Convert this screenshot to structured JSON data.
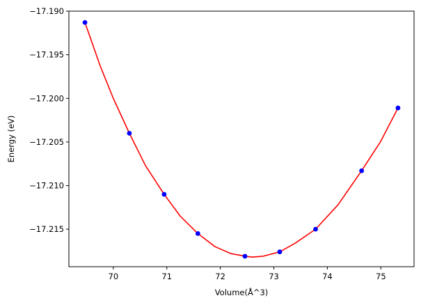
{
  "chart_data": {
    "type": "scatter",
    "xlabel": "Volume(Å^3)",
    "ylabel": "Energy (eV)",
    "xlim": [
      69.17,
      75.62
    ],
    "ylim": [
      -17.2193,
      -17.19
    ],
    "x_ticks": [
      70,
      71,
      72,
      73,
      74,
      75
    ],
    "x_tick_labels": [
      "70",
      "71",
      "72",
      "73",
      "74",
      "75"
    ],
    "y_ticks": [
      -17.19,
      -17.195,
      -17.2,
      -17.205,
      -17.21,
      -17.215
    ],
    "y_tick_labels": [
      "−17.190",
      "−17.195",
      "−17.200",
      "−17.205",
      "−17.210",
      "−17.215"
    ],
    "grid": false,
    "series": [
      {
        "type": "scatter",
        "color": "#0000ff",
        "x": [
          69.47,
          70.3,
          70.95,
          71.58,
          72.46,
          73.11,
          73.78,
          74.64,
          75.32
        ],
        "y": [
          -17.1913,
          -17.204,
          -17.211,
          -17.2155,
          -17.2181,
          -17.2176,
          -17.215,
          -17.2083,
          -17.2011
        ]
      },
      {
        "type": "line",
        "color": "#ff0000",
        "x": [
          69.47,
          69.75,
          70.0,
          70.3,
          70.6,
          70.95,
          71.25,
          71.58,
          71.9,
          72.2,
          72.46,
          72.6,
          72.8,
          73.11,
          73.4,
          73.78,
          74.2,
          74.64,
          75.0,
          75.32
        ],
        "y": [
          -17.1913,
          -17.1962,
          -17.2,
          -17.204,
          -17.2077,
          -17.211,
          -17.2135,
          -17.2155,
          -17.217,
          -17.2178,
          -17.2181,
          -17.2182,
          -17.2181,
          -17.2176,
          -17.2166,
          -17.215,
          -17.2122,
          -17.2083,
          -17.2049,
          -17.2011
        ]
      }
    ]
  }
}
